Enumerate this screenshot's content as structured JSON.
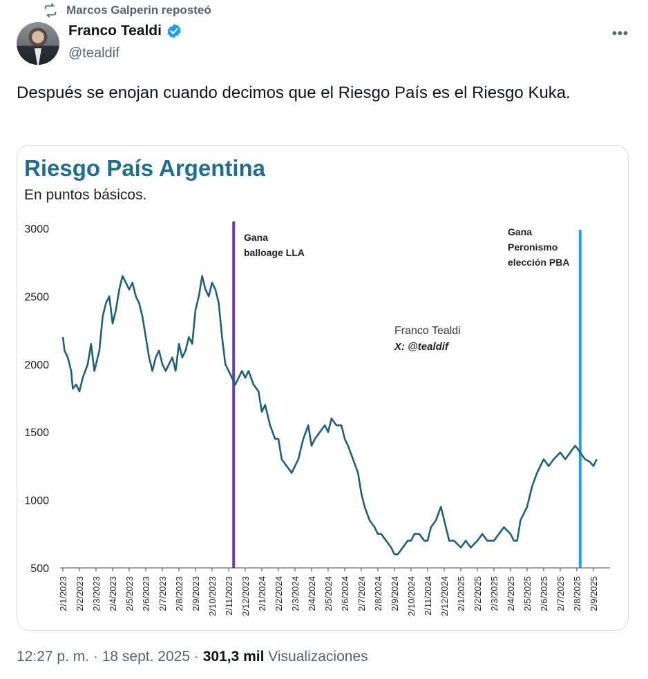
{
  "repost": {
    "text": "Marcos Galperin reposteó",
    "icon": "repost-icon"
  },
  "author": {
    "name": "Franco Tealdi",
    "handle": "@tealdif",
    "verified_icon": "verified-badge-icon",
    "verified_color": "#1d9bf0"
  },
  "more_icon": "more-dots-icon",
  "tweet": {
    "text": "Después se enojan cuando decimos que el Riesgo País es el Riesgo Kuka."
  },
  "chart": {
    "title": "Riesgo País Argentina",
    "subtitle": "En puntos básicos.",
    "watermark_name": "Franco Tealdi",
    "watermark_handle": "X: @tealdif"
  },
  "chart_data": {
    "type": "line",
    "title": "Riesgo País Argentina",
    "subtitle": "En puntos básicos.",
    "ylim": [
      500,
      3000
    ],
    "y_ticks": [
      500,
      1000,
      1500,
      2000,
      2500,
      3000
    ],
    "x_range_months": [
      0,
      32
    ],
    "x_tick_labels": [
      "2/1/2023",
      "2/2/2023",
      "2/3/2023",
      "2/4/2023",
      "2/5/2023",
      "2/6/2023",
      "2/7/2023",
      "2/8/2023",
      "2/9/2023",
      "2/10/2023",
      "2/11/2023",
      "2/12/2023",
      "2/1/2024",
      "2/2/2024",
      "2/3/2024",
      "2/4/2024",
      "2/5/2024",
      "2/6/2024",
      "2/7/2024",
      "2/8/2024",
      "2/9/2024",
      "2/10/2024",
      "2/11/2024",
      "2/12/2024",
      "2/1/2025",
      "2/2/2025",
      "2/3/2025",
      "2/4/2025",
      "2/5/2025",
      "2/6/2025",
      "2/7/2025",
      "2/8/2025",
      "2/9/2025"
    ],
    "line_color": "#1f5f7a",
    "series": [
      {
        "x": [
          0,
          0.1,
          0.3,
          0.5,
          0.6,
          0.8,
          1.0,
          1.2,
          1.5,
          1.7,
          1.9,
          2.0,
          2.2,
          2.4,
          2.6,
          2.8,
          3.0,
          3.2,
          3.4,
          3.6,
          3.8,
          4.0,
          4.2,
          4.4,
          4.6,
          4.8,
          5.0,
          5.2,
          5.4,
          5.6,
          5.8,
          6.0,
          6.2,
          6.4,
          6.6,
          6.8,
          7.0,
          7.2,
          7.4,
          7.6,
          7.8,
          8.0,
          8.2,
          8.4,
          8.6,
          8.8,
          9.0,
          9.2,
          9.4,
          9.6,
          9.8,
          10.0,
          10.2,
          10.4,
          10.6,
          10.8,
          11.0,
          11.2,
          11.5,
          11.8,
          12.0,
          12.2,
          12.5,
          12.8,
          13.0,
          13.2,
          13.5,
          13.8,
          14.0,
          14.2,
          14.5,
          14.8,
          15.0,
          15.2,
          15.5,
          15.8,
          16.0,
          16.2,
          16.5,
          16.8,
          17.0,
          17.2,
          17.5,
          17.8,
          18.0,
          18.2,
          18.5,
          18.8,
          19.0,
          19.2,
          19.5,
          19.8,
          20.0,
          20.2,
          20.5,
          20.8,
          21.0,
          21.2,
          21.5,
          21.8,
          22.0,
          22.2,
          22.5,
          22.8,
          23.0,
          23.3,
          23.6,
          24.0,
          24.3,
          24.6,
          25.0,
          25.3,
          25.6,
          26.0,
          26.3,
          26.6,
          27.0,
          27.2,
          27.4,
          27.6,
          28.0,
          28.3,
          28.6,
          29.0,
          29.3,
          29.6,
          30.0,
          30.3,
          30.6,
          30.9,
          31.2,
          31.5,
          31.8,
          32.0,
          32.2
        ],
        "y": [
          2200,
          2100,
          2050,
          1950,
          1820,
          1850,
          1800,
          1900,
          2000,
          2150,
          1950,
          2000,
          2100,
          2350,
          2450,
          2500,
          2300,
          2400,
          2550,
          2650,
          2600,
          2550,
          2600,
          2500,
          2450,
          2350,
          2200,
          2050,
          1950,
          2050,
          2100,
          2000,
          1950,
          2000,
          2050,
          1950,
          2150,
          2050,
          2100,
          2200,
          2150,
          2400,
          2500,
          2650,
          2550,
          2500,
          2600,
          2550,
          2450,
          2200,
          2000,
          1950,
          1900,
          1850,
          1900,
          1950,
          1900,
          1950,
          1850,
          1800,
          1650,
          1700,
          1550,
          1450,
          1450,
          1300,
          1250,
          1200,
          1250,
          1300,
          1450,
          1550,
          1400,
          1450,
          1500,
          1550,
          1500,
          1600,
          1550,
          1550,
          1450,
          1400,
          1300,
          1200,
          1050,
          950,
          850,
          800,
          750,
          750,
          700,
          650,
          600,
          600,
          650,
          700,
          700,
          750,
          750,
          700,
          700,
          800,
          850,
          950,
          850,
          700,
          700,
          650,
          700,
          650,
          700,
          750,
          700,
          700,
          750,
          800,
          750,
          700,
          700,
          850,
          950,
          1100,
          1200,
          1300,
          1250,
          1300,
          1350,
          1300,
          1350,
          1400,
          1350,
          1300,
          1280,
          1250,
          1300
        ]
      }
    ],
    "annotations": [
      {
        "x": 10.3,
        "label": "Gana balloage LLA",
        "color": "#6b3fa0"
      },
      {
        "x": 31.2,
        "label": "Gana Peronismo elección PBA",
        "color": "#1ea4d6"
      }
    ],
    "legend": "none",
    "grid": false
  },
  "footer": {
    "time": "12:27 p. m.",
    "date": "18 sept. 2025",
    "views_count": "301,3 mil",
    "views_label": "Visualizaciones"
  }
}
